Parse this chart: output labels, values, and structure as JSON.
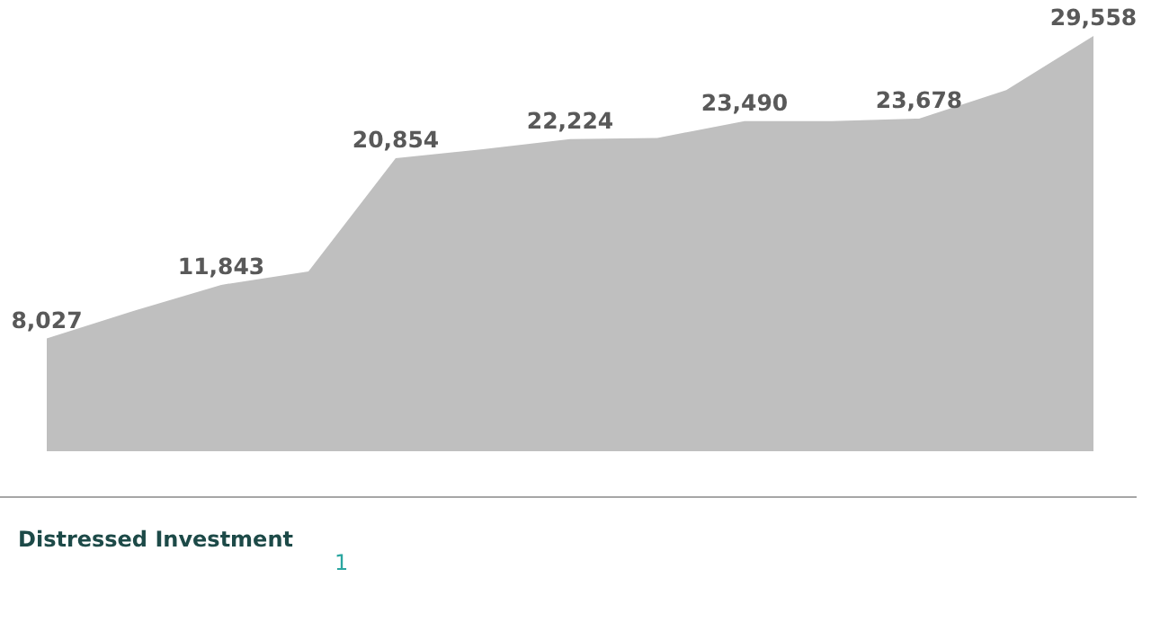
{
  "chart_data": {
    "type": "area",
    "categories": [
      null,
      null,
      null,
      null,
      null,
      null,
      null,
      null,
      null,
      null,
      null,
      null,
      null
    ],
    "series": [
      {
        "color": "#bfbfbf",
        "values": [
          8027,
          10000,
          11843,
          12800,
          20854,
          21500,
          22224,
          22300,
          23490,
          23500,
          23678,
          25700,
          29558
        ],
        "value_labels": [
          "8,027",
          null,
          "11,843",
          null,
          "20,854",
          null,
          "22,224",
          null,
          "23,490",
          null,
          "23,678",
          null,
          "29,558"
        ]
      }
    ],
    "annotations": [
      "Distressed Investment",
      "1"
    ]
  }
}
